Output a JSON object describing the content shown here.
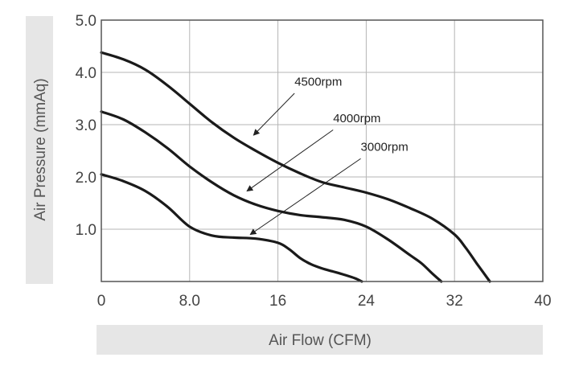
{
  "chart_data": {
    "type": "line",
    "xlabel": "Air Flow (CFM)",
    "ylabel": "Air Pressure (mmAq)",
    "xlim": [
      0,
      40
    ],
    "ylim": [
      0,
      5
    ],
    "x_ticks": [
      "0",
      "8.0",
      "16",
      "24",
      "32",
      "40"
    ],
    "x_tick_values": [
      0,
      8,
      16,
      24,
      32,
      40
    ],
    "y_ticks": [
      "1.0",
      "2.0",
      "3.0",
      "4.0",
      "5.0"
    ],
    "y_tick_values": [
      1,
      2,
      3,
      4,
      5
    ],
    "grid": true,
    "line_color": "#1a1a1a",
    "axis_title_bg": "#e6e6e6",
    "series": [
      {
        "name": "4500rpm",
        "x": [
          0,
          2,
          4,
          6,
          8,
          10,
          12,
          14,
          16,
          18,
          20,
          22,
          24,
          26,
          28,
          30,
          32,
          33,
          34,
          35.2
        ],
        "y": [
          4.38,
          4.25,
          4.05,
          3.75,
          3.4,
          3.05,
          2.75,
          2.5,
          2.27,
          2.07,
          1.9,
          1.8,
          1.7,
          1.57,
          1.4,
          1.2,
          0.9,
          0.65,
          0.35,
          0
        ]
      },
      {
        "name": "4000rpm",
        "x": [
          0,
          2,
          4,
          6,
          8,
          10,
          12,
          14,
          16,
          18,
          20,
          22,
          24,
          26,
          28,
          29,
          30,
          30.8
        ],
        "y": [
          3.25,
          3.1,
          2.85,
          2.55,
          2.2,
          1.9,
          1.65,
          1.47,
          1.35,
          1.27,
          1.23,
          1.18,
          1.05,
          0.8,
          0.5,
          0.35,
          0.15,
          0
        ]
      },
      {
        "name": "3000rpm",
        "x": [
          0,
          2,
          4,
          6,
          8,
          10,
          12,
          14,
          16,
          17,
          18,
          19,
          20,
          21,
          22,
          23,
          23.6
        ],
        "y": [
          2.05,
          1.92,
          1.73,
          1.43,
          1.05,
          0.88,
          0.84,
          0.82,
          0.74,
          0.62,
          0.45,
          0.33,
          0.25,
          0.19,
          0.13,
          0.06,
          0
        ]
      }
    ],
    "annotations": [
      {
        "text": "4500rpm",
        "label_x": 17.5,
        "label_y": 3.75,
        "arrow_from": [
          17.5,
          3.6
        ],
        "arrow_to": [
          13.8,
          2.8
        ]
      },
      {
        "text": "4000rpm",
        "label_x": 21.0,
        "label_y": 3.05,
        "arrow_from": [
          21.0,
          2.9
        ],
        "arrow_to": [
          13.2,
          1.73
        ]
      },
      {
        "text": "3000rpm",
        "label_x": 23.5,
        "label_y": 2.5,
        "arrow_from": [
          23.5,
          2.35
        ],
        "arrow_to": [
          13.5,
          0.9
        ]
      }
    ]
  }
}
